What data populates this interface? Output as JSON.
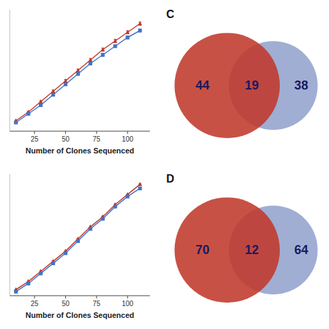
{
  "chart_data": [
    {
      "type": "line",
      "xlabel": "Number of Clones Sequenced",
      "x": [
        10,
        20,
        30,
        40,
        50,
        60,
        70,
        80,
        90,
        100,
        110
      ],
      "xlim": [
        5,
        118
      ],
      "xticks": [
        25,
        50,
        75,
        100
      ],
      "ylim": [
        0,
        70
      ],
      "tick_labels": "x",
      "series": [
        {
          "color": "#C0392B",
          "marker": "triangle",
          "values": [
            6,
            11,
            17,
            23,
            29,
            35,
            41,
            47,
            52,
            57,
            62
          ],
          "errors": [
            0.4,
            0.5,
            0.6,
            0.7,
            0.8,
            0.8,
            0.9,
            0.9,
            0.9,
            0.9,
            0.9
          ]
        },
        {
          "color": "#4472C4",
          "marker": "square",
          "values": [
            5,
            10,
            15,
            21,
            27,
            33,
            39,
            44,
            49,
            54,
            58
          ],
          "errors": [
            0.4,
            0.5,
            0.6,
            0.7,
            0.8,
            0.8,
            0.8,
            0.8,
            0.8,
            0.8,
            0.8
          ]
        }
      ]
    },
    {
      "type": "line",
      "xlabel": "Number of Clones Sequenced",
      "x": [
        10,
        20,
        30,
        40,
        50,
        60,
        70,
        80,
        90,
        100,
        110
      ],
      "xlim": [
        5,
        118
      ],
      "xticks": [
        25,
        50,
        75,
        100
      ],
      "ylim": [
        0,
        60
      ],
      "tick_labels": "x",
      "series": [
        {
          "color": "#C0392B",
          "marker": "triangle",
          "values": [
            3,
            7,
            12,
            17,
            22,
            28,
            34,
            39,
            45,
            50,
            55
          ],
          "errors": [
            0.2,
            0.3,
            0.3,
            0.3,
            0.3,
            0.3,
            0.3,
            0.3,
            0.3,
            0.3,
            0.3
          ]
        },
        {
          "color": "#4472C4",
          "marker": "square",
          "values": [
            2,
            6,
            11,
            16,
            21,
            27,
            33,
            38,
            44,
            49,
            53
          ],
          "errors": [
            0.2,
            0.3,
            0.3,
            0.3,
            0.3,
            0.3,
            0.3,
            0.3,
            0.3,
            0.3,
            0.3
          ]
        }
      ]
    },
    {
      "type": "venn",
      "title": "C",
      "values": [
        44,
        19,
        38
      ],
      "colors": [
        "#C0392B",
        "#7B8FC4"
      ]
    },
    {
      "type": "venn",
      "title": "D",
      "values": [
        70,
        12,
        64
      ],
      "colors": [
        "#C0392B",
        "#7B8FC4"
      ]
    }
  ]
}
